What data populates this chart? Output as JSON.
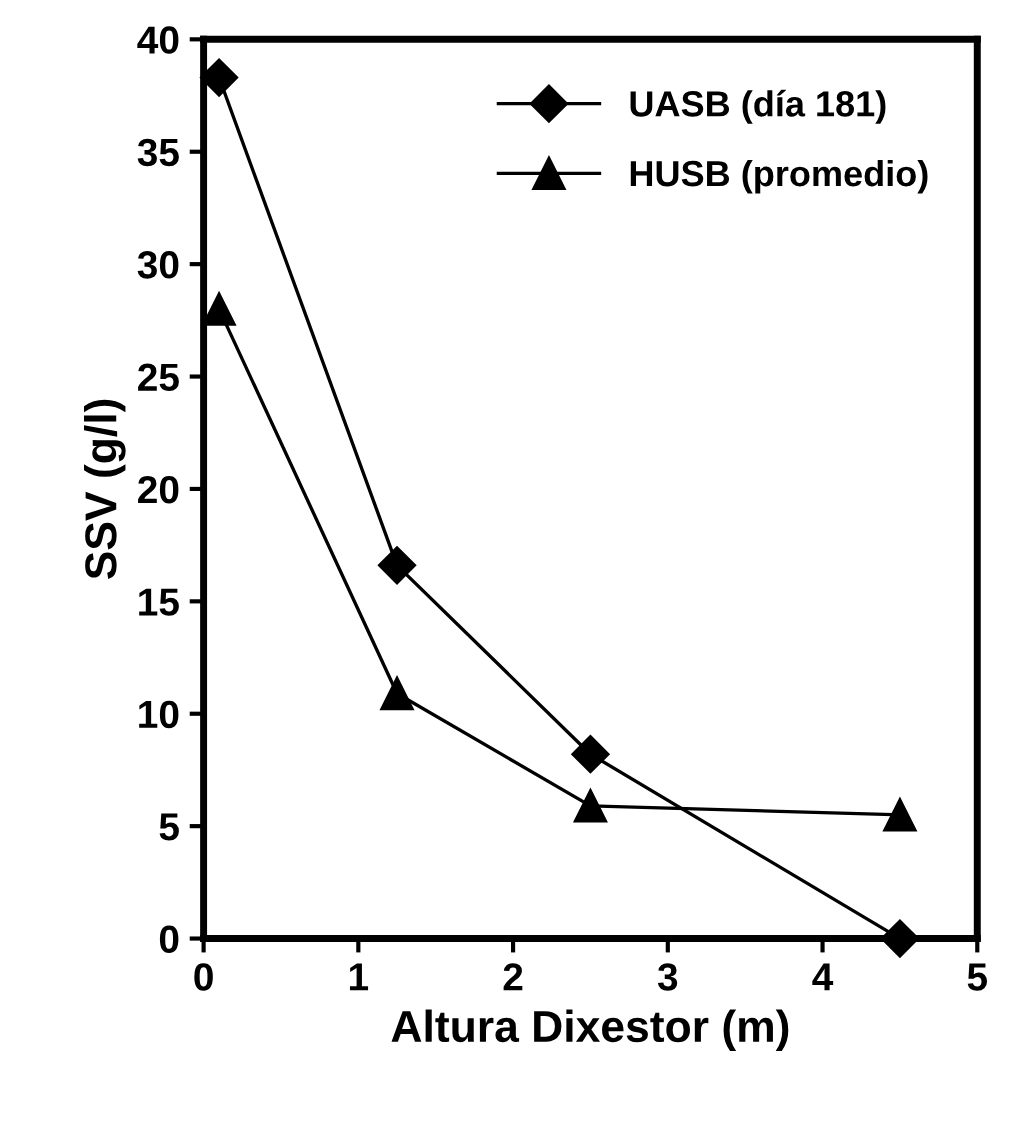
{
  "chart_data": {
    "type": "line",
    "xlabel": "Altura Dixestor (m)",
    "ylabel": "SSV (g/l)",
    "xlim": [
      0,
      5
    ],
    "xticks": [
      0,
      1,
      2,
      3,
      4,
      5
    ],
    "ylim": [
      0,
      40
    ],
    "yticks": [
      0,
      5,
      10,
      15,
      20,
      25,
      30,
      35,
      40
    ],
    "grid": false,
    "legend": "top right",
    "line_style": "solid",
    "series": [
      {
        "name": "UASB (día 181)",
        "color": "#000000",
        "marker": "diamond",
        "x": [
          0.1,
          1.25,
          2.5,
          4.5
        ],
        "values": [
          38.3,
          16.6,
          8.2,
          0
        ]
      },
      {
        "name": "HUSB (promedio)",
        "color": "#000000",
        "marker": "triangle",
        "x": [
          0.1,
          1.25,
          2.5,
          4.5
        ],
        "values": [
          28.0,
          10.9,
          5.9,
          5.5
        ]
      }
    ]
  }
}
